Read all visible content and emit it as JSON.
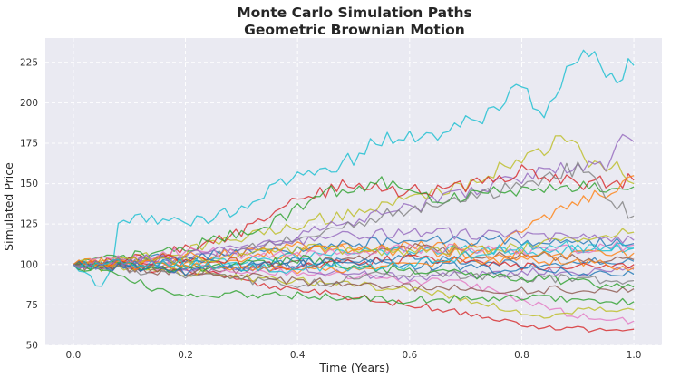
{
  "chart_data": {
    "type": "line",
    "title": "Monte Carlo Simulation Paths",
    "subtitle": "Geometric Brownian Motion",
    "xlabel": "Time (Years)",
    "ylabel": "Simulated Price",
    "xlim": [
      -0.05,
      1.05
    ],
    "ylim": [
      50,
      240
    ],
    "x_ticks": [
      0.0,
      0.2,
      0.4,
      0.6,
      0.8,
      1.0
    ],
    "x_tick_labels": [
      "0.0",
      "0.2",
      "0.4",
      "0.6",
      "0.8",
      "1.0"
    ],
    "y_ticks": [
      50,
      75,
      100,
      125,
      150,
      175,
      200,
      225
    ],
    "y_tick_labels": [
      "50",
      "75",
      "100",
      "125",
      "150",
      "175",
      "200",
      "225"
    ],
    "grid": true,
    "grid_style": "dashed-white",
    "background": "#EAEAF2",
    "legend": "none",
    "start_value": 100,
    "series": [
      {
        "color": "#17BECF",
        "keyframes": [
          [
            0,
            100
          ],
          [
            0.05,
            85
          ],
          [
            0.07,
            100
          ],
          [
            0.08,
            125
          ],
          [
            0.12,
            130
          ],
          [
            0.2,
            125
          ],
          [
            0.3,
            135
          ],
          [
            0.4,
            155
          ],
          [
            0.5,
            165
          ],
          [
            0.55,
            178
          ],
          [
            0.65,
            180
          ],
          [
            0.72,
            190
          ],
          [
            0.8,
            210
          ],
          [
            0.84,
            193
          ],
          [
            0.9,
            230
          ],
          [
            0.93,
            233
          ],
          [
            0.95,
            222
          ],
          [
            0.97,
            218
          ],
          [
            1.0,
            223
          ]
        ]
      },
      {
        "color": "#BCBD22",
        "keyframes": [
          [
            0,
            100
          ],
          [
            0.2,
            108
          ],
          [
            0.4,
            125
          ],
          [
            0.6,
            140
          ],
          [
            0.7,
            150
          ],
          [
            0.8,
            165
          ],
          [
            0.87,
            178
          ],
          [
            0.92,
            165
          ],
          [
            0.97,
            160
          ],
          [
            1.0,
            150
          ]
        ]
      },
      {
        "color": "#9467BD",
        "keyframes": [
          [
            0,
            100
          ],
          [
            0.2,
            102
          ],
          [
            0.4,
            118
          ],
          [
            0.6,
            135
          ],
          [
            0.75,
            150
          ],
          [
            0.85,
            158
          ],
          [
            0.95,
            162
          ],
          [
            0.98,
            178
          ],
          [
            1.0,
            176
          ]
        ]
      },
      {
        "color": "#D62728",
        "keyframes": [
          [
            0,
            100
          ],
          [
            0.15,
            105
          ],
          [
            0.3,
            120
          ],
          [
            0.4,
            140
          ],
          [
            0.5,
            150
          ],
          [
            0.6,
            145
          ],
          [
            0.7,
            148
          ],
          [
            0.8,
            158
          ],
          [
            0.9,
            150
          ],
          [
            1.0,
            152
          ]
        ]
      },
      {
        "color": "#2CA02C",
        "keyframes": [
          [
            0,
            100
          ],
          [
            0.2,
            110
          ],
          [
            0.35,
            125
          ],
          [
            0.45,
            145
          ],
          [
            0.55,
            150
          ],
          [
            0.65,
            140
          ],
          [
            0.75,
            145
          ],
          [
            0.85,
            148
          ],
          [
            1.0,
            148
          ]
        ]
      },
      {
        "color": "#FF7F0E",
        "keyframes": [
          [
            0,
            100
          ],
          [
            0.2,
            100
          ],
          [
            0.4,
            108
          ],
          [
            0.6,
            112
          ],
          [
            0.75,
            110
          ],
          [
            0.85,
            130
          ],
          [
            0.9,
            140
          ],
          [
            0.96,
            145
          ],
          [
            1.0,
            155
          ]
        ]
      },
      {
        "color": "#7F7F7F",
        "keyframes": [
          [
            0,
            100
          ],
          [
            0.25,
            105
          ],
          [
            0.45,
            120
          ],
          [
            0.55,
            130
          ],
          [
            0.7,
            140
          ],
          [
            0.8,
            150
          ],
          [
            0.9,
            160
          ],
          [
            0.96,
            140
          ],
          [
            1.0,
            130
          ]
        ]
      },
      {
        "color": "#1F77B4",
        "keyframes": [
          [
            0,
            100
          ],
          [
            0.2,
            105
          ],
          [
            0.4,
            110
          ],
          [
            0.6,
            115
          ],
          [
            0.8,
            115
          ],
          [
            1.0,
            113
          ]
        ]
      },
      {
        "color": "#8C564B",
        "keyframes": [
          [
            0,
            100
          ],
          [
            0.2,
            95
          ],
          [
            0.4,
            100
          ],
          [
            0.6,
            110
          ],
          [
            0.8,
            105
          ],
          [
            1.0,
            103
          ]
        ]
      },
      {
        "color": "#E377C2",
        "keyframes": [
          [
            0,
            100
          ],
          [
            0.2,
            98
          ],
          [
            0.4,
            95
          ],
          [
            0.6,
            90
          ],
          [
            0.7,
            88
          ],
          [
            0.8,
            78
          ],
          [
            0.9,
            68
          ],
          [
            1.0,
            65
          ]
        ]
      },
      {
        "color": "#D62728",
        "keyframes": [
          [
            0,
            100
          ],
          [
            0.2,
            96
          ],
          [
            0.4,
            85
          ],
          [
            0.6,
            75
          ],
          [
            0.7,
            70
          ],
          [
            0.8,
            62
          ],
          [
            0.9,
            60
          ],
          [
            1.0,
            60
          ]
        ]
      },
      {
        "color": "#BCBD22",
        "keyframes": [
          [
            0,
            100
          ],
          [
            0.2,
            95
          ],
          [
            0.4,
            90
          ],
          [
            0.6,
            85
          ],
          [
            0.7,
            78
          ],
          [
            0.8,
            70
          ],
          [
            0.85,
            68
          ],
          [
            0.9,
            72
          ],
          [
            1.0,
            72
          ]
        ]
      },
      {
        "color": "#2CA02C",
        "keyframes": [
          [
            0,
            100
          ],
          [
            0.15,
            85
          ],
          [
            0.2,
            80
          ],
          [
            0.3,
            82
          ],
          [
            0.45,
            80
          ],
          [
            0.6,
            78
          ],
          [
            0.8,
            80
          ],
          [
            1.0,
            77
          ]
        ]
      },
      {
        "color": "#17BECF",
        "keyframes": [
          [
            0,
            100
          ],
          [
            0.2,
            100
          ],
          [
            0.4,
            105
          ],
          [
            0.6,
            110
          ],
          [
            0.8,
            108
          ],
          [
            1.0,
            110
          ]
        ]
      },
      {
        "color": "#9467BD",
        "keyframes": [
          [
            0,
            100
          ],
          [
            0.2,
            97
          ],
          [
            0.4,
            98
          ],
          [
            0.6,
            92
          ],
          [
            0.8,
            95
          ],
          [
            1.0,
            97
          ]
        ]
      },
      {
        "color": "#FF7F0E",
        "keyframes": [
          [
            0,
            100
          ],
          [
            0.2,
            104
          ],
          [
            0.4,
            112
          ],
          [
            0.6,
            108
          ],
          [
            0.8,
            105
          ],
          [
            1.0,
            107
          ]
        ]
      },
      {
        "color": "#7F7F7F",
        "keyframes": [
          [
            0,
            100
          ],
          [
            0.2,
            93
          ],
          [
            0.4,
            88
          ],
          [
            0.6,
            95
          ],
          [
            0.8,
            92
          ],
          [
            1.0,
            90
          ]
        ]
      },
      {
        "color": "#1F77B4",
        "keyframes": [
          [
            0,
            100
          ],
          [
            0.2,
            102
          ],
          [
            0.4,
            100
          ],
          [
            0.6,
            104
          ],
          [
            0.8,
            100
          ],
          [
            1.0,
            102
          ]
        ]
      },
      {
        "color": "#8C564B",
        "keyframes": [
          [
            0,
            100
          ],
          [
            0.2,
            96
          ],
          [
            0.4,
            90
          ],
          [
            0.6,
            86
          ],
          [
            0.8,
            84
          ],
          [
            1.0,
            85
          ]
        ]
      },
      {
        "color": "#E377C2",
        "keyframes": [
          [
            0,
            100
          ],
          [
            0.2,
            108
          ],
          [
            0.4,
            105
          ],
          [
            0.6,
            110
          ],
          [
            0.8,
            108
          ],
          [
            1.0,
            112
          ]
        ]
      },
      {
        "color": "#2CA02C",
        "keyframes": [
          [
            0,
            100
          ],
          [
            0.2,
            97
          ],
          [
            0.4,
            103
          ],
          [
            0.6,
            96
          ],
          [
            0.8,
            92
          ],
          [
            1.0,
            86
          ]
        ]
      },
      {
        "color": "#D62728",
        "keyframes": [
          [
            0,
            100
          ],
          [
            0.2,
            104
          ],
          [
            0.4,
            98
          ],
          [
            0.6,
            104
          ],
          [
            0.8,
            98
          ],
          [
            1.0,
            100
          ]
        ]
      },
      {
        "color": "#BCBD22",
        "keyframes": [
          [
            0,
            100
          ],
          [
            0.2,
            103
          ],
          [
            0.4,
            110
          ],
          [
            0.6,
            108
          ],
          [
            0.8,
            110
          ],
          [
            1.0,
            120
          ]
        ]
      },
      {
        "color": "#1F77B4",
        "keyframes": [
          [
            0,
            100
          ],
          [
            0.2,
            95
          ],
          [
            0.4,
            102
          ],
          [
            0.6,
            100
          ],
          [
            0.8,
            96
          ],
          [
            1.0,
            94
          ]
        ]
      },
      {
        "color": "#FF7F0E",
        "keyframes": [
          [
            0,
            100
          ],
          [
            0.2,
            99
          ],
          [
            0.4,
            96
          ],
          [
            0.6,
            100
          ],
          [
            0.8,
            104
          ],
          [
            1.0,
            98
          ]
        ]
      },
      {
        "color": "#17BECF",
        "keyframes": [
          [
            0,
            100
          ],
          [
            0.2,
            101
          ],
          [
            0.4,
            97
          ],
          [
            0.6,
            100
          ],
          [
            0.8,
            112
          ],
          [
            1.0,
            110
          ]
        ]
      },
      {
        "color": "#9467BD",
        "keyframes": [
          [
            0,
            100
          ],
          [
            0.2,
            105
          ],
          [
            0.4,
            115
          ],
          [
            0.6,
            120
          ],
          [
            0.8,
            118
          ],
          [
            1.0,
            115
          ]
        ]
      }
    ]
  }
}
